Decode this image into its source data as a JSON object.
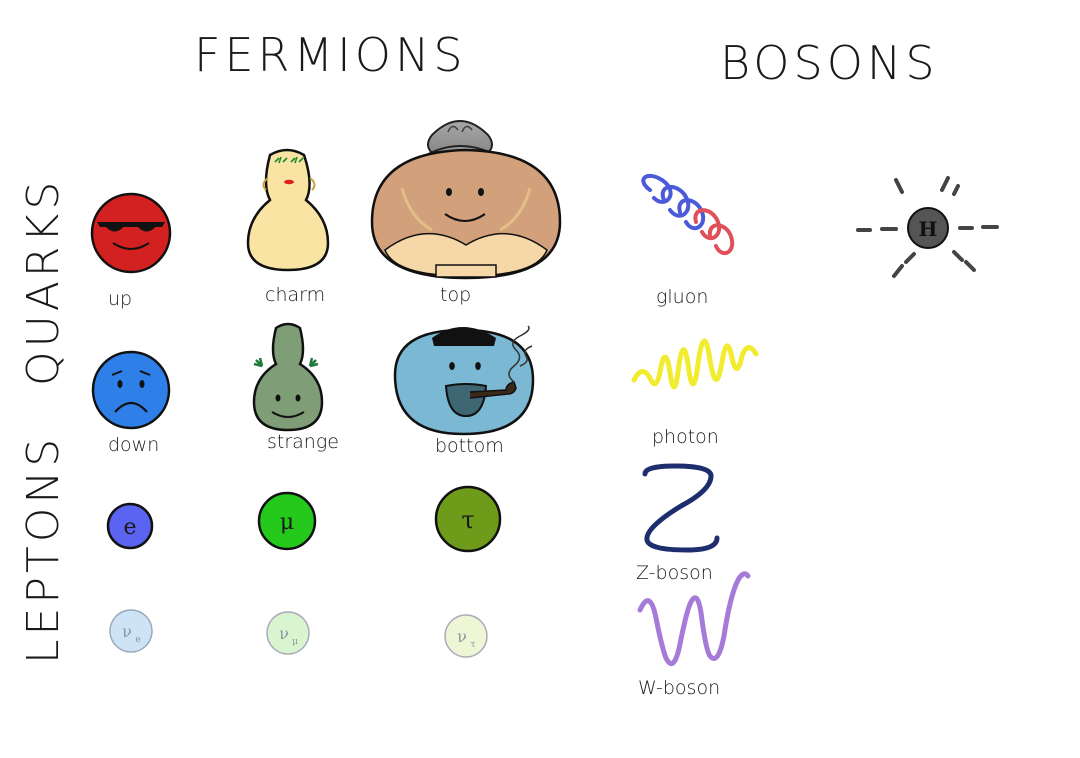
{
  "headings": {
    "fermions": "FERMIONS",
    "bosons": "BOSONS",
    "quarks": "QUARKS",
    "leptons": "LEPTONS"
  },
  "quarks": [
    {
      "label": "up",
      "color": "#d32020"
    },
    {
      "label": "charm",
      "color": "#f9e4a3"
    },
    {
      "label": "top",
      "color": "#d3a07c"
    },
    {
      "label": "down",
      "color": "#2f7fe8"
    },
    {
      "label": "strange",
      "color": "#7f9e77"
    },
    {
      "label": "bottom",
      "color": "#7ab8d3"
    }
  ],
  "leptons": [
    {
      "symbol": "e",
      "color": "#5a64f0"
    },
    {
      "symbol": "μ",
      "color": "#25c91c"
    },
    {
      "symbol": "τ",
      "color": "#6e9b1a"
    },
    {
      "symbol": "ν",
      "sub": "e",
      "color": "#cfe3f7"
    },
    {
      "symbol": "ν",
      "sub": "μ",
      "color": "#d9f5cf"
    },
    {
      "symbol": "ν",
      "sub": "τ",
      "color": "#eef6d6"
    }
  ],
  "bosons": [
    {
      "label": "gluon",
      "colors": [
        "#4a5ad8",
        "#e0505a"
      ]
    },
    {
      "label": "photon",
      "color": "#f2ec30"
    },
    {
      "label": "Z-boson",
      "color": "#1e2d6e"
    },
    {
      "label": "W-boson",
      "color": "#a57ad8"
    },
    {
      "symbol": "H",
      "color": "#555555"
    }
  ]
}
